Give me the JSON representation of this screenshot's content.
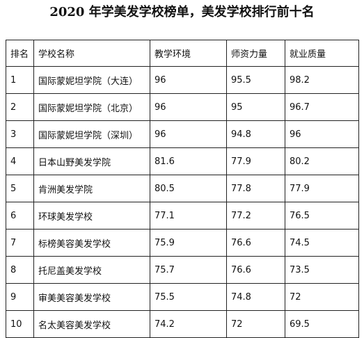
{
  "title": "2020 年学美发学校榜单，美发学校排行前十名",
  "table": {
    "headers": [
      "排名",
      "学校名称",
      "教学环境",
      "师资力量",
      "就业质量"
    ],
    "rows": [
      [
        "1",
        "国际蒙妮坦学院（大连）",
        "96",
        "95.5",
        "98.2"
      ],
      [
        "2",
        "国际蒙妮坦学院（北京）",
        "96",
        "95",
        "96.7"
      ],
      [
        "3",
        "国际蒙妮坦学院（深圳）",
        "96",
        "94.8",
        "96"
      ],
      [
        "4",
        "日本山野美发学院",
        "81.6",
        "77.9",
        "80.2"
      ],
      [
        "5",
        "肯洲美发学院",
        "80.5",
        "77.8",
        "77.9"
      ],
      [
        "6",
        "环球美发学校",
        "77.1",
        "77.2",
        "76.5"
      ],
      [
        "7",
        "标榜美容美发学校",
        "75.9",
        "76.6",
        "74.5"
      ],
      [
        "8",
        "托尼盖美发学校",
        "75.7",
        "76.6",
        "73.5"
      ],
      [
        "9",
        "审美美容美发学校",
        "75.5",
        "74.8",
        "72"
      ],
      [
        "10",
        "名太美容美发学校",
        "74.2",
        "72",
        "69.5"
      ]
    ]
  }
}
